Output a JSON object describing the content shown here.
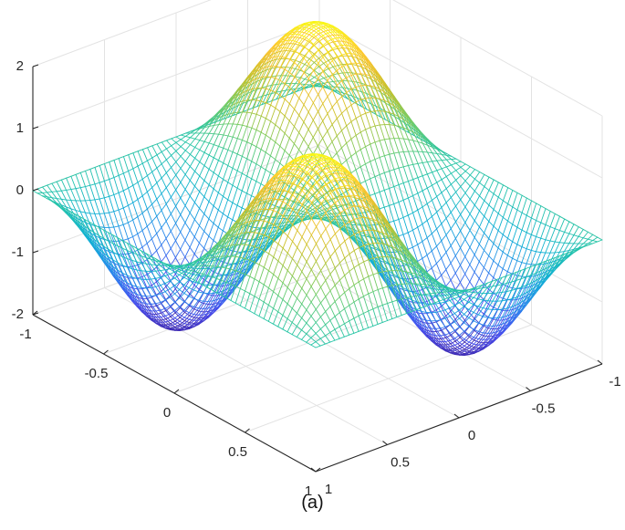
{
  "caption": "(a)",
  "chart_data": {
    "type": "surface",
    "title": "",
    "xlabel": "",
    "ylabel": "",
    "zlabel": "",
    "xlim": [
      -1,
      1
    ],
    "ylim": [
      -1,
      1
    ],
    "zlim": [
      -2,
      2
    ],
    "xticks": [
      "-1",
      "-0.5",
      "0",
      "0.5",
      "1"
    ],
    "yticks": [
      "-1",
      "-0.5",
      "0",
      "0.5",
      "1"
    ],
    "zticks": [
      "-2",
      "-1",
      "0",
      "1",
      "2"
    ],
    "grid": true,
    "colormap": "parula",
    "function": "z = 2 * sin(pi*x) * sin(pi*y)",
    "grid_samples": 61,
    "peaks": [
      {
        "x": 0.5,
        "y": 0.5,
        "z": 2
      },
      {
        "x": -0.5,
        "y": -0.5,
        "z": 2
      }
    ],
    "troughs": [
      {
        "x": 0.5,
        "y": -0.5,
        "z": -2
      },
      {
        "x": -0.5,
        "y": 0.5,
        "z": -2
      }
    ]
  }
}
